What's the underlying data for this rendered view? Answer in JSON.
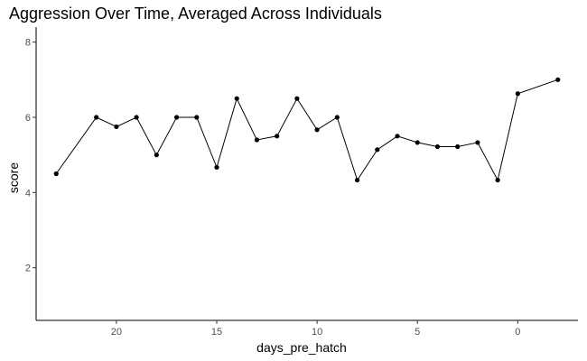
{
  "chart_data": {
    "type": "line",
    "title": "Aggression Over Time, Averaged Across Individuals",
    "xlabel": "days_pre_hatch",
    "ylabel": "score",
    "x_reversed": true,
    "xlim": [
      24,
      -3
    ],
    "ylim": [
      0.6,
      8.4
    ],
    "x_ticks": [
      20,
      15,
      10,
      5,
      0
    ],
    "y_ticks": [
      2,
      4,
      6,
      8
    ],
    "grid": false,
    "legend": "none",
    "color": "#000000",
    "points": [
      {
        "x": 23,
        "y": 4.5
      },
      {
        "x": 21,
        "y": 6.0
      },
      {
        "x": 20,
        "y": 5.75
      },
      {
        "x": 19,
        "y": 6.0
      },
      {
        "x": 18,
        "y": 5.0
      },
      {
        "x": 17,
        "y": 6.0
      },
      {
        "x": 16,
        "y": 6.0
      },
      {
        "x": 15,
        "y": 4.67
      },
      {
        "x": 14,
        "y": 6.5
      },
      {
        "x": 13,
        "y": 5.4
      },
      {
        "x": 12,
        "y": 5.5
      },
      {
        "x": 11,
        "y": 6.5
      },
      {
        "x": 10,
        "y": 5.67
      },
      {
        "x": 9,
        "y": 6.0
      },
      {
        "x": 8,
        "y": 4.33
      },
      {
        "x": 7,
        "y": 5.14
      },
      {
        "x": 6,
        "y": 5.5
      },
      {
        "x": 5,
        "y": 5.33
      },
      {
        "x": 4,
        "y": 5.22
      },
      {
        "x": 3,
        "y": 5.22
      },
      {
        "x": 2,
        "y": 5.33
      },
      {
        "x": 1,
        "y": 4.33
      },
      {
        "x": 0,
        "y": 6.63
      },
      {
        "x": -2,
        "y": 7.0
      }
    ]
  }
}
